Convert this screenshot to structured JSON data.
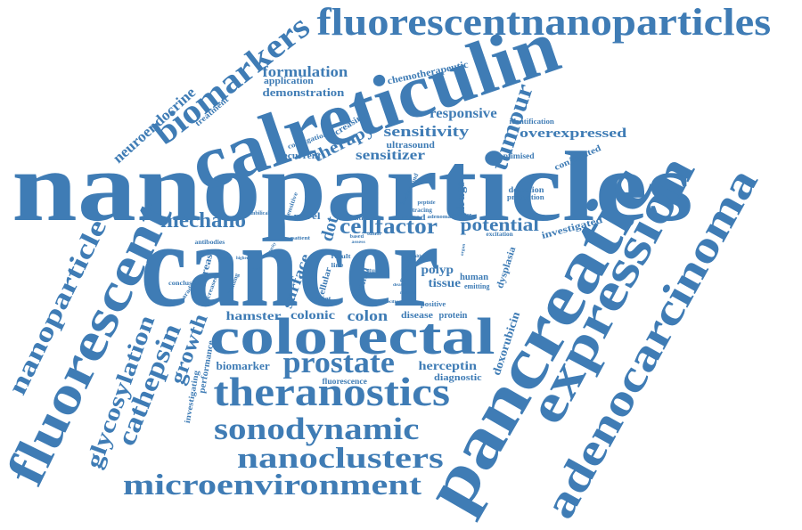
{
  "word_color": "#3f7cb5",
  "words": [
    {
      "text": "nanoparticles"
    },
    {
      "text": "cancer"
    },
    {
      "text": "calreticulin"
    },
    {
      "text": "colorectal"
    },
    {
      "text": "pancreatic"
    },
    {
      "text": "expression"
    },
    {
      "text": "adenocarcinoma"
    },
    {
      "text": "fluorescent"
    },
    {
      "text": "fluorescentnanoparticles"
    },
    {
      "text": "theranostics"
    },
    {
      "text": "biomarkers"
    },
    {
      "text": "nanoparticle"
    },
    {
      "text": "sonodynamic"
    },
    {
      "text": "nanoclusters"
    },
    {
      "text": "microenvironment"
    },
    {
      "text": "prostate"
    },
    {
      "text": "glycosylation"
    },
    {
      "text": "cathepsin"
    },
    {
      "text": "growth"
    },
    {
      "text": "tumour"
    },
    {
      "text": "mechano"
    },
    {
      "text": "cellfactor"
    },
    {
      "text": "potential"
    },
    {
      "text": "neuroendocrine"
    },
    {
      "text": "formulation"
    },
    {
      "text": "demonstration"
    },
    {
      "text": "application"
    },
    {
      "text": "chemotherapeutic"
    },
    {
      "text": "responsive"
    },
    {
      "text": "sensitivity"
    },
    {
      "text": "therapy"
    },
    {
      "text": "sensitizer"
    },
    {
      "text": "overexpressed"
    },
    {
      "text": "ultrasound"
    },
    {
      "text": "increasing"
    },
    {
      "text": "conjugation"
    },
    {
      "text": "recurrent"
    },
    {
      "text": "identification"
    },
    {
      "text": "optimised"
    },
    {
      "text": "conjugated"
    },
    {
      "text": "drugs"
    },
    {
      "text": "detection"
    },
    {
      "text": "production"
    },
    {
      "text": "treatment"
    },
    {
      "text": "dot"
    },
    {
      "text": "novel"
    },
    {
      "text": "method"
    },
    {
      "text": "control"
    },
    {
      "text": "investigated"
    },
    {
      "text": "excitation"
    },
    {
      "text": "adenoma"
    },
    {
      "text": "inhibitor"
    },
    {
      "text": "background"
    },
    {
      "text": "tracing"
    },
    {
      "text": "peptide"
    },
    {
      "text": "sensitive"
    },
    {
      "text": "breast"
    },
    {
      "text": "surface"
    },
    {
      "text": "antibodies"
    },
    {
      "text": "umbilical"
    },
    {
      "text": "patient"
    },
    {
      "text": "based"
    },
    {
      "text": "tumor"
    },
    {
      "text": "assess"
    },
    {
      "text": "hamster"
    },
    {
      "text": "colonic"
    },
    {
      "text": "colon"
    },
    {
      "text": "disease"
    },
    {
      "text": "protein"
    },
    {
      "text": "positive"
    },
    {
      "text": "doxorubicin"
    },
    {
      "text": "herceptin"
    },
    {
      "text": "diagnostic"
    },
    {
      "text": "fluorescence"
    },
    {
      "text": "biomarker"
    },
    {
      "text": "performance"
    },
    {
      "text": "investigating"
    },
    {
      "text": "polyp"
    },
    {
      "text": "tissue"
    },
    {
      "text": "human"
    },
    {
      "text": "emitting"
    },
    {
      "text": "dysplasia"
    },
    {
      "text": "normal"
    },
    {
      "text": "cellular"
    },
    {
      "text": "target"
    },
    {
      "text": "study"
    },
    {
      "text": "result"
    },
    {
      "text": "line"
    },
    {
      "text": "presence"
    },
    {
      "text": "infrared"
    },
    {
      "text": "conclusion"
    },
    {
      "text": "paradigm"
    },
    {
      "text": "increased"
    },
    {
      "text": "binding"
    },
    {
      "text": "material"
    },
    {
      "text": "specific"
    },
    {
      "text": "affect"
    },
    {
      "text": "capacity"
    },
    {
      "text": "higher"
    },
    {
      "text": "cell"
    },
    {
      "text": "organ"
    },
    {
      "text": "healthy"
    },
    {
      "text": "death"
    }
  ]
}
